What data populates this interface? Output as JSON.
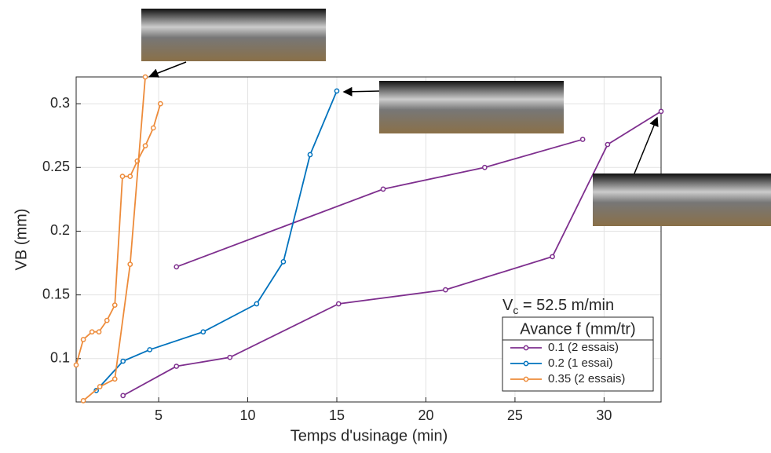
{
  "chart_data": {
    "type": "line",
    "x_label": "Temps d'usinage (min)",
    "y_label": "VB (mm)",
    "xlim": [
      0.37,
      33.2
    ],
    "ylim": [
      0.066,
      0.321
    ],
    "xticks": [
      5,
      10,
      15,
      20,
      25,
      30
    ],
    "yticks": [
      0.1,
      0.15,
      0.2,
      0.25,
      0.3
    ],
    "grid": true,
    "annotation": {
      "symbol": "V",
      "subscript": "c",
      "text": " = 52.5 m/min"
    },
    "legend_title": "Avance f (mm/tr)",
    "series": [
      {
        "name": "0.1 (2 essais)",
        "color": "#7e2f8e",
        "runs": [
          {
            "x": [
              6.0,
              17.6,
              23.3,
              28.8
            ],
            "values": [
              0.172,
              0.233,
              0.25,
              0.272
            ]
          },
          {
            "x": [
              3.0,
              6.0,
              9.0,
              15.1,
              21.1,
              27.1,
              30.2,
              33.2
            ],
            "values": [
              0.071,
              0.094,
              0.101,
              0.143,
              0.154,
              0.18,
              0.268,
              0.294
            ]
          }
        ]
      },
      {
        "name": "0.2 (1 essai)",
        "color": "#0072bd",
        "runs": [
          {
            "x": [
              1.5,
              3.0,
              4.5,
              7.5,
              10.5,
              12.0,
              13.5,
              15.0
            ],
            "values": [
              0.075,
              0.098,
              0.107,
              0.121,
              0.143,
              0.176,
              0.26,
              0.31
            ]
          }
        ]
      },
      {
        "name": "0.35 (2 essais)",
        "color": "#ed8b3a",
        "runs": [
          {
            "x": [
              0.37,
              0.77,
              1.26,
              1.65,
              2.1,
              2.54,
              2.97,
              3.4,
              3.8,
              4.25,
              4.7,
              5.1
            ],
            "values": [
              0.095,
              0.115,
              0.121,
              0.121,
              0.13,
              0.142,
              0.243,
              0.243,
              0.255,
              0.267,
              0.281,
              0.3
            ]
          },
          {
            "x": [
              0.77,
              1.7,
              2.54,
              3.4,
              4.25
            ],
            "values": [
              0.067,
              0.078,
              0.084,
              0.174,
              0.321
            ]
          }
        ]
      }
    ]
  }
}
